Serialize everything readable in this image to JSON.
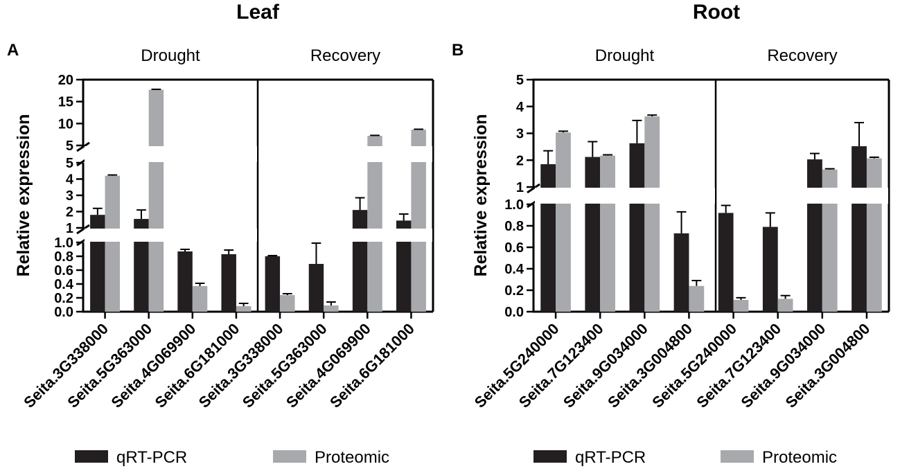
{
  "legend": {
    "series": [
      "qRT-PCR",
      "Proteomic"
    ]
  },
  "colors": {
    "qrt_pcr": "#231f20",
    "proteomic": "#a7a9ac",
    "axis": "#000000"
  },
  "chart_data": [
    {
      "panel": "A",
      "title": "Leaf",
      "type": "bar",
      "ylabel": "Relative expression",
      "conditions": [
        "Drought",
        "Recovery"
      ],
      "categories": [
        "Seita.3G338000",
        "Seita.5G363000",
        "Seita.4G069900",
        "Seita.6G181000",
        "Seita.3G338000",
        "Seita.5G363000",
        "Seita.4G069900",
        "Seita.6G181000"
      ],
      "series": [
        {
          "name": "qRT-PCR",
          "values": [
            1.8,
            1.55,
            0.87,
            0.83,
            0.8,
            0.69,
            2.1,
            1.45
          ],
          "errors": [
            0.4,
            0.55,
            0.03,
            0.06,
            0.01,
            0.3,
            0.75,
            0.4
          ]
        },
        {
          "name": "Proteomic",
          "values": [
            4.2,
            17.7,
            0.37,
            0.08,
            0.24,
            0.09,
            7.2,
            8.6
          ],
          "errors": [
            0.05,
            0.1,
            0.04,
            0.04,
            0.02,
            0.05,
            0.1,
            0.1
          ]
        }
      ],
      "y_segments": [
        {
          "range": [
            0,
            1
          ],
          "ticks": [
            0,
            0.2,
            0.4,
            0.6,
            0.8,
            1.0
          ],
          "tick_labels": [
            "0.0",
            "0.2",
            "0.4",
            "0.6",
            "0.8",
            "1.0"
          ]
        },
        {
          "range": [
            1,
            5
          ],
          "ticks": [
            1,
            2,
            3,
            4,
            5
          ],
          "tick_labels": [
            "1",
            "2",
            "3",
            "4",
            "5"
          ]
        },
        {
          "range": [
            5,
            20
          ],
          "ticks": [
            5,
            10,
            15,
            20
          ],
          "tick_labels": [
            "5",
            "10",
            "15",
            "20"
          ]
        }
      ],
      "ylim": [
        0,
        20
      ]
    },
    {
      "panel": "B",
      "title": "Root",
      "type": "bar",
      "ylabel": "Relative expression",
      "conditions": [
        "Drought",
        "Recovery"
      ],
      "categories": [
        "Seita.5G240000",
        "Seita.7G123400",
        "Seita.9G034000",
        "Seita.3G004800",
        "Seita.5G240000",
        "Seita.7G123400",
        "Seita.9G034000",
        "Seita.3G004800"
      ],
      "series": [
        {
          "name": "qRT-PCR",
          "values": [
            1.85,
            2.12,
            2.63,
            0.73,
            0.92,
            0.79,
            2.03,
            2.52
          ],
          "errors": [
            0.5,
            0.57,
            0.85,
            0.2,
            0.07,
            0.13,
            0.22,
            0.88
          ]
        },
        {
          "name": "Proteomic",
          "values": [
            3.03,
            2.17,
            3.63,
            0.24,
            0.11,
            0.12,
            1.65,
            2.07
          ],
          "errors": [
            0.05,
            0.03,
            0.05,
            0.05,
            0.02,
            0.03,
            0.03,
            0.04
          ]
        }
      ],
      "y_segments": [
        {
          "range": [
            0,
            1
          ],
          "ticks": [
            0,
            0.2,
            0.4,
            0.6,
            0.8,
            1.0
          ],
          "tick_labels": [
            "0.0",
            "0.2",
            "0.4",
            "0.6",
            "0.8",
            "1.0"
          ]
        },
        {
          "range": [
            1,
            5
          ],
          "ticks": [
            1,
            2,
            3,
            4,
            5
          ],
          "tick_labels": [
            "1",
            "2",
            "3",
            "4",
            "5"
          ]
        }
      ],
      "ylim": [
        0,
        5
      ]
    }
  ]
}
